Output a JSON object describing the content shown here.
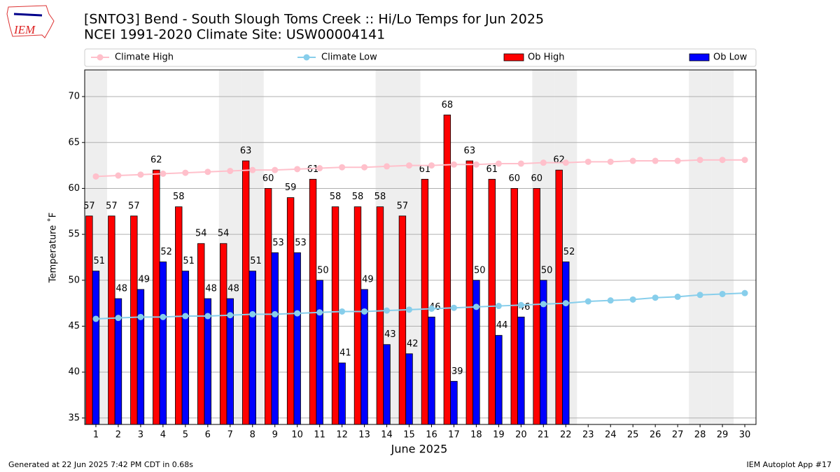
{
  "logo_text": "IEM",
  "footer_left": "Generated at 22 Jun 2025 7:42 PM CDT in 0.68s",
  "footer_right": "IEM Autoplot App #17",
  "chart_data": {
    "type": "bar",
    "title": "[SNTO3] Bend - South Slough Toms Creek :: Hi/Lo Temps for Jun 2025",
    "subtitle": "NCEI 1991-2020 Climate Site: USW00004141",
    "x_label": "June 2025",
    "y_label": "Temperature ˚F",
    "x": [
      1,
      2,
      3,
      4,
      5,
      6,
      7,
      8,
      9,
      10,
      11,
      12,
      13,
      14,
      15,
      16,
      17,
      18,
      19,
      20,
      21,
      22,
      23,
      24,
      25,
      26,
      27,
      28,
      29,
      30
    ],
    "xlim": [
      0.5,
      30.5
    ],
    "xticks": [
      1,
      2,
      3,
      4,
      5,
      6,
      7,
      8,
      9,
      10,
      11,
      12,
      13,
      14,
      15,
      16,
      17,
      18,
      19,
      20,
      21,
      22,
      23,
      24,
      25,
      26,
      27,
      28,
      29,
      30
    ],
    "ylim": [
      34.3,
      72.9
    ],
    "yticks": [
      35,
      40,
      45,
      50,
      55,
      60,
      65,
      70
    ],
    "grid": true,
    "legend": "top",
    "shaded_days": [
      1,
      7,
      8,
      14,
      15,
      21,
      22,
      28,
      29
    ],
    "shade_color": "#eeeeee",
    "series": [
      {
        "name": "Climate High",
        "type": "line",
        "color": "#ffc0cb",
        "values": [
          61.3,
          61.4,
          61.5,
          61.6,
          61.7,
          61.8,
          61.9,
          62.0,
          62.0,
          62.1,
          62.2,
          62.3,
          62.3,
          62.4,
          62.5,
          62.5,
          62.6,
          62.6,
          62.7,
          62.7,
          62.8,
          62.8,
          62.9,
          62.9,
          63.0,
          63.0,
          63.0,
          63.1,
          63.1,
          63.1
        ]
      },
      {
        "name": "Climate Low",
        "type": "line",
        "color": "#87ceeb",
        "values": [
          45.8,
          45.9,
          46.0,
          46.0,
          46.1,
          46.1,
          46.2,
          46.3,
          46.3,
          46.4,
          46.5,
          46.6,
          46.6,
          46.7,
          46.8,
          46.9,
          47.0,
          47.1,
          47.2,
          47.3,
          47.4,
          47.5,
          47.7,
          47.8,
          47.9,
          48.1,
          48.2,
          48.4,
          48.5,
          48.6
        ]
      },
      {
        "name": "Ob High",
        "type": "bar",
        "color": "#ff0000",
        "values": [
          57,
          57,
          57,
          62,
          58,
          54,
          54,
          63,
          60,
          59,
          61,
          58,
          58,
          58,
          57,
          61,
          68,
          63,
          61,
          60,
          60,
          62,
          null,
          null,
          null,
          null,
          null,
          null,
          null,
          null
        ]
      },
      {
        "name": "Ob Low",
        "type": "bar",
        "color": "#0000ff",
        "values": [
          51,
          48,
          49,
          52,
          51,
          48,
          48,
          51,
          53,
          53,
          50,
          41,
          49,
          43,
          42,
          46,
          39,
          50,
          44,
          46,
          50,
          52,
          null,
          null,
          null,
          null,
          null,
          null,
          null,
          null
        ]
      }
    ]
  }
}
